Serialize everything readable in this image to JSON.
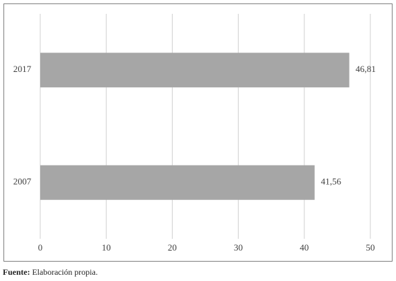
{
  "chart_data": {
    "type": "hbar",
    "categories": [
      "2017",
      "2007"
    ],
    "values": [
      46.81,
      41.56
    ],
    "value_labels": [
      "46,81",
      "41,56"
    ],
    "color": "#a6a6a6",
    "xlim": [
      0,
      50
    ],
    "xticks": [
      0,
      10,
      20,
      30,
      40,
      50
    ],
    "grid": true
  },
  "source": {
    "label": "Fuente:",
    "text": "Elaboración propia."
  }
}
